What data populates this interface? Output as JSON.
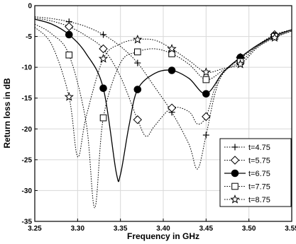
{
  "chart_data": {
    "type": "line",
    "xlabel": "Frequency in GHz",
    "ylabel": "Return loss in dB",
    "xlim": [
      3.25,
      3.55
    ],
    "ylim": [
      -35,
      0
    ],
    "xticks": [
      3.25,
      3.3,
      3.35,
      3.4,
      3.45,
      3.5,
      3.55
    ],
    "xtick_labels": [
      "3.25",
      "3.30",
      "3.35",
      "3.40",
      "3.45",
      "3.50",
      "3.55"
    ],
    "yticks": [
      0,
      -5,
      -10,
      -15,
      -20,
      -25,
      -30,
      -35
    ],
    "ytick_labels": [
      "0",
      "-5",
      "-10",
      "-15",
      "-20",
      "-25",
      "-30",
      "-35"
    ],
    "grid": true,
    "legend_position": "bottom-right",
    "marker_x": [
      3.29,
      3.33,
      3.37,
      3.41,
      3.45,
      3.49,
      3.53
    ],
    "series": [
      {
        "name": "t=4.75",
        "marker": "plus",
        "line_style": "dotted",
        "x": [
          3.25,
          3.27,
          3.29,
          3.31,
          3.33,
          3.35,
          3.37,
          3.39,
          3.41,
          3.43,
          3.44,
          3.45,
          3.46,
          3.47,
          3.49,
          3.51,
          3.53,
          3.55
        ],
        "y": [
          -1.8,
          -2.1,
          -2.6,
          -3.4,
          -4.7,
          -6.6,
          -9.3,
          -13.2,
          -17.3,
          -22.5,
          -26.5,
          -21.0,
          -14.5,
          -11.0,
          -8.6,
          -6.6,
          -5.1,
          -4.1
        ],
        "marker_y": [
          -2.6,
          -4.7,
          -9.3,
          -17.3,
          -21.0,
          -8.6,
          -5.1
        ]
      },
      {
        "name": "t=5.75",
        "marker": "diamond",
        "line_style": "dotted",
        "x": [
          3.25,
          3.27,
          3.29,
          3.31,
          3.33,
          3.35,
          3.37,
          3.38,
          3.39,
          3.41,
          3.43,
          3.44,
          3.45,
          3.46,
          3.47,
          3.49,
          3.51,
          3.53,
          3.55
        ],
        "y": [
          -2.0,
          -2.5,
          -3.4,
          -4.9,
          -7.0,
          -11.5,
          -18.5,
          -21.2,
          -19.5,
          -16.6,
          -17.2,
          -19.2,
          -18.0,
          -13.5,
          -10.8,
          -8.4,
          -6.4,
          -4.7,
          -3.9
        ],
        "marker_y": [
          -3.4,
          -7.0,
          -18.5,
          -16.6,
          -18.0,
          -8.4,
          -4.7
        ]
      },
      {
        "name": "t=6.75",
        "marker": "circle",
        "line_style": "solid",
        "x": [
          3.25,
          3.27,
          3.29,
          3.31,
          3.33,
          3.345,
          3.35,
          3.36,
          3.37,
          3.39,
          3.41,
          3.43,
          3.45,
          3.47,
          3.49,
          3.51,
          3.53,
          3.55
        ],
        "y": [
          -2.2,
          -3.0,
          -4.7,
          -7.8,
          -13.4,
          -27.0,
          -27.4,
          -19.5,
          -13.6,
          -11.0,
          -10.5,
          -11.8,
          -14.3,
          -10.8,
          -8.4,
          -6.4,
          -4.9,
          -3.9
        ],
        "marker_y": [
          -4.7,
          -13.4,
          -13.6,
          -10.5,
          -14.3,
          -8.4,
          -4.9
        ]
      },
      {
        "name": "t=7.75",
        "marker": "square",
        "line_style": "dotted",
        "x": [
          3.25,
          3.27,
          3.29,
          3.31,
          3.32,
          3.33,
          3.35,
          3.37,
          3.39,
          3.41,
          3.43,
          3.45,
          3.47,
          3.49,
          3.51,
          3.53,
          3.55
        ],
        "y": [
          -3.0,
          -4.6,
          -8.0,
          -19.0,
          -32.8,
          -18.2,
          -9.3,
          -7.5,
          -7.0,
          -7.8,
          -9.5,
          -12.0,
          -10.5,
          -9.1,
          -6.6,
          -5.0,
          -3.9
        ],
        "marker_y": [
          -8.0,
          -18.2,
          -7.5,
          -7.8,
          -12.0,
          -9.1,
          -5.0
        ]
      },
      {
        "name": "t=8.75",
        "marker": "star",
        "line_style": "dotted",
        "x": [
          3.25,
          3.27,
          3.29,
          3.3,
          3.31,
          3.33,
          3.35,
          3.37,
          3.39,
          3.41,
          3.43,
          3.45,
          3.47,
          3.49,
          3.51,
          3.53,
          3.55
        ],
        "y": [
          -3.5,
          -6.4,
          -14.8,
          -24.5,
          -18.0,
          -8.6,
          -6.2,
          -5.5,
          -5.6,
          -7.0,
          -8.9,
          -10.8,
          -10.2,
          -9.5,
          -6.8,
          -5.2,
          -4.1
        ],
        "marker_y": [
          -14.8,
          -8.6,
          -5.5,
          -7.0,
          -10.8,
          -9.5,
          -5.2
        ]
      }
    ]
  }
}
